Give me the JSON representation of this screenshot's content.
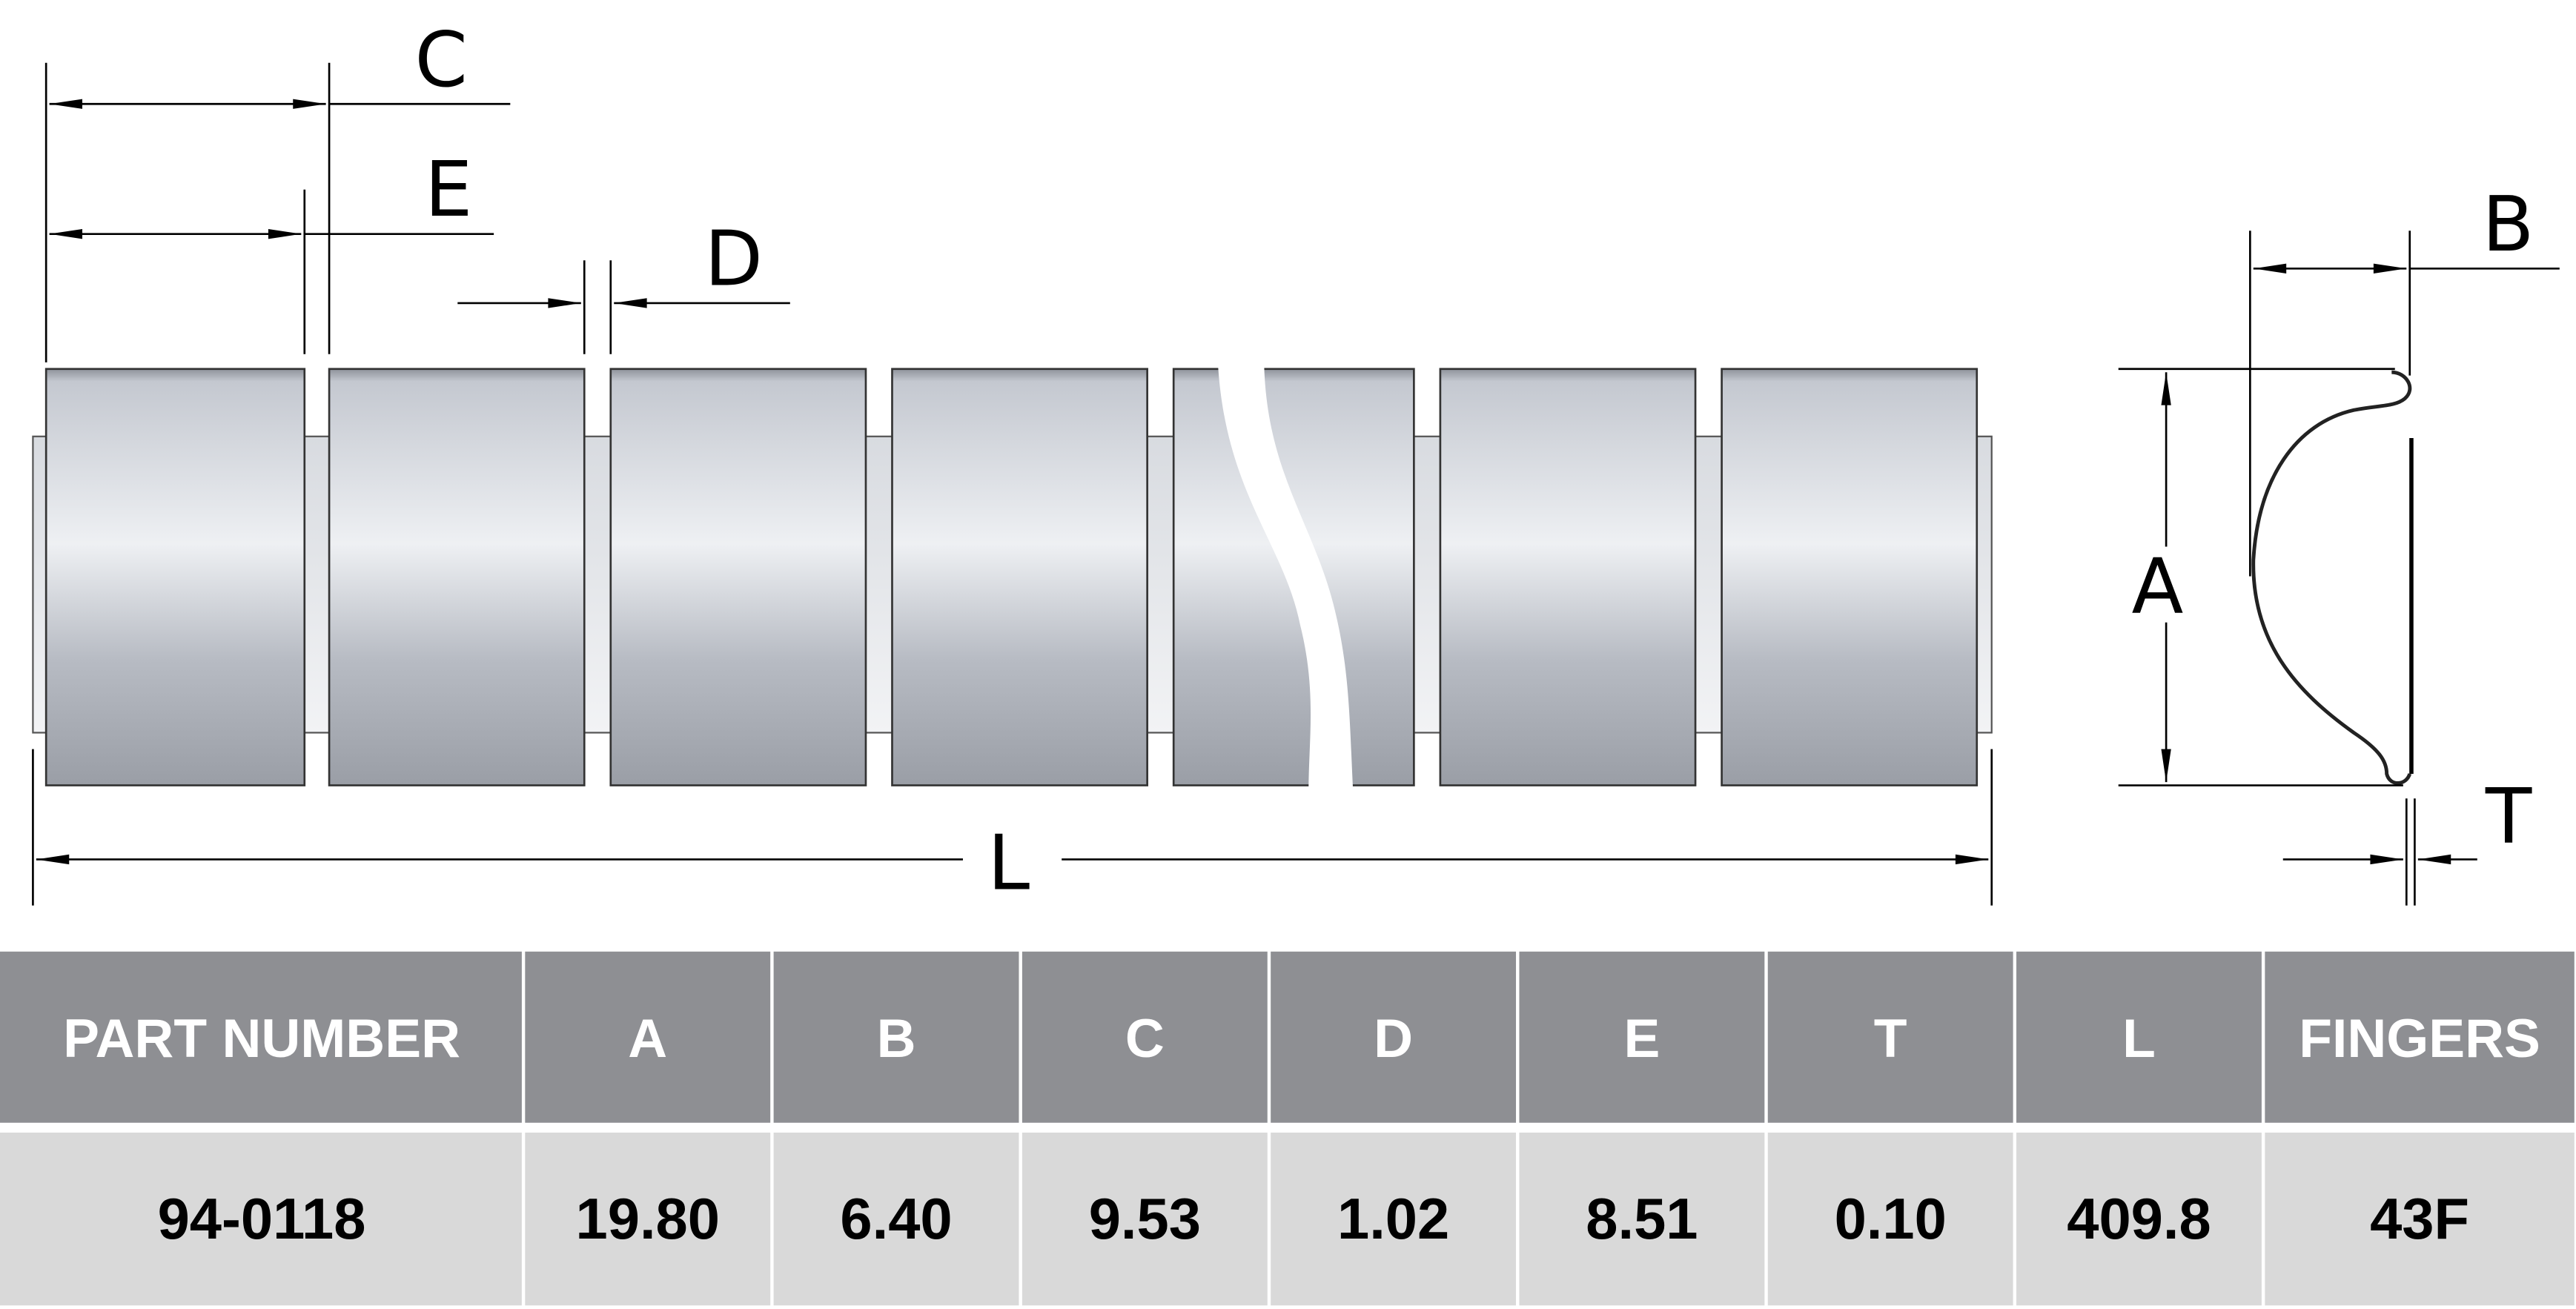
{
  "drawing": {
    "dimension_labels": {
      "C": "C",
      "E": "E",
      "D": "D",
      "L": "L",
      "A": "A",
      "B": "B",
      "T": "T"
    },
    "finger_count_shown": 7
  },
  "table": {
    "headers": [
      "PART NUMBER",
      "A",
      "B",
      "C",
      "D",
      "E",
      "T",
      "L",
      "FINGERS"
    ],
    "rows": [
      [
        "94-0118",
        "19.80",
        "6.40",
        "9.53",
        "1.02",
        "8.51",
        "0.10",
        "409.8",
        "43F"
      ]
    ],
    "colors": {
      "header_bg": "#8e8f93",
      "row_bg": "#d9d9d9",
      "header_text": "#ffffff",
      "row_text": "#000000"
    }
  }
}
